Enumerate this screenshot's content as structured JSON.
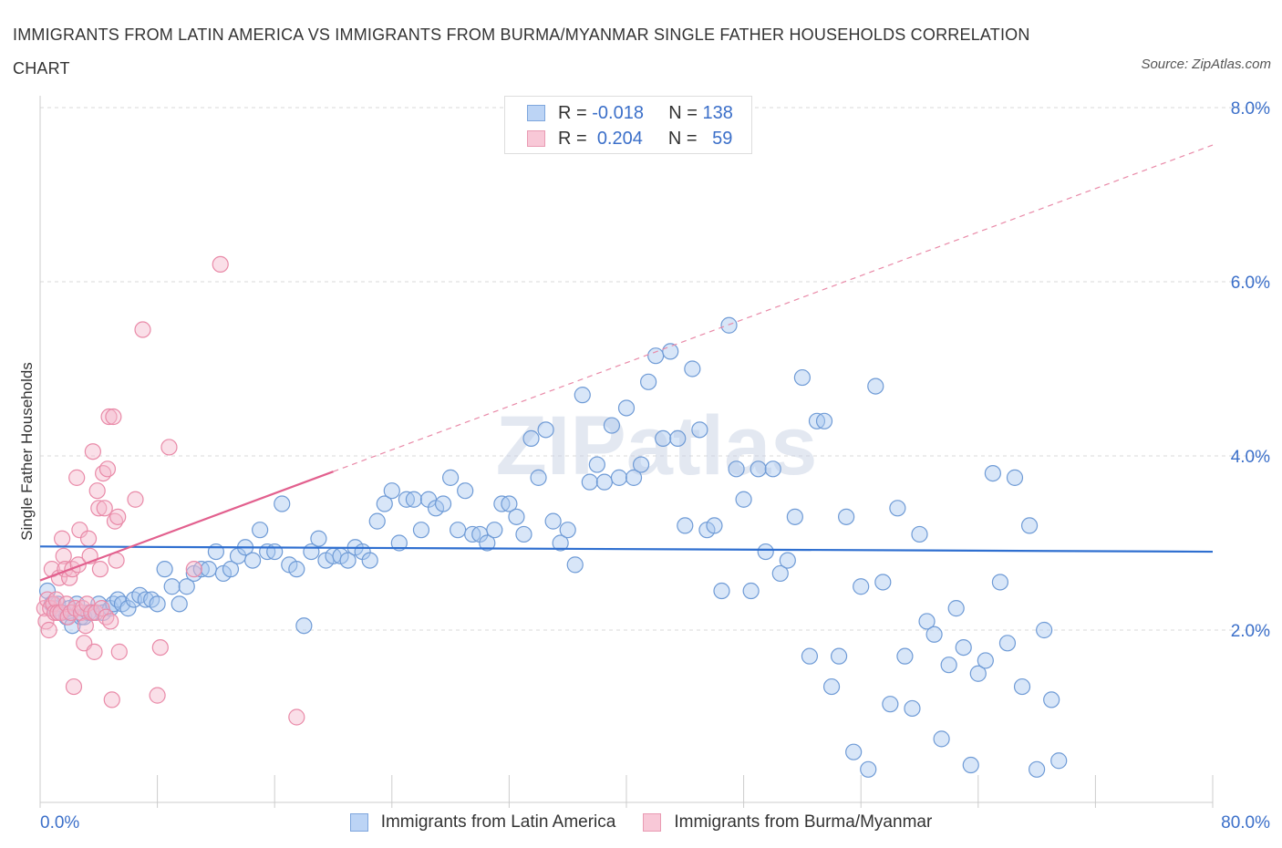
{
  "title": "IMMIGRANTS FROM LATIN AMERICA VS IMMIGRANTS FROM BURMA/MYANMAR SINGLE FATHER HOUSEHOLDS CORRELATION CHART",
  "source": "Source: ZipAtlas.com",
  "watermark": "ZIPatlas",
  "colors": {
    "blue_fill": "#a9c7f0",
    "blue_stroke": "#6f9bd6",
    "blue_line": "#2f6fd0",
    "pink_fill": "#f5b8cb",
    "pink_stroke": "#e98aa8",
    "pink_line": "#e2608e",
    "axis_text": "#3b6fc9",
    "grid": "#d9d9d9"
  },
  "legend": {
    "rows": [
      {
        "r_label": "R =",
        "r_value": "-0.018",
        "n_label": "N =",
        "n_value": "138"
      },
      {
        "r_label": "R =",
        "r_value": "0.204",
        "n_label": "N =",
        "n_value": "59"
      }
    ]
  },
  "bottom_legend": {
    "series1": "Immigrants from Latin America",
    "series2": "Immigrants from Burma/Myanmar"
  },
  "chart_data": {
    "type": "scatter",
    "ylabel": "Single Father Households",
    "xlim": [
      0,
      80
    ],
    "ylim": [
      0,
      8
    ],
    "x_tick_labels": [
      "0.0%",
      "80.0%"
    ],
    "y_ticks": [
      2,
      4,
      6,
      8
    ],
    "y_tick_labels": [
      "2.0%",
      "4.0%",
      "6.0%",
      "8.0%"
    ],
    "grid": "horizontal dashed",
    "series": [
      {
        "name": "Immigrants from Latin America",
        "color": "#a9c7f0",
        "trend": {
          "x": [
            0,
            80
          ],
          "y": [
            2.96,
            2.9
          ],
          "style": "solid"
        },
        "points": [
          [
            0.5,
            2.45
          ],
          [
            0.8,
            2.3
          ],
          [
            1.0,
            2.25
          ],
          [
            1.2,
            2.3
          ],
          [
            1.5,
            2.2
          ],
          [
            1.8,
            2.15
          ],
          [
            2.0,
            2.25
          ],
          [
            2.2,
            2.05
          ],
          [
            2.5,
            2.3
          ],
          [
            2.8,
            2.15
          ],
          [
            3.0,
            2.15
          ],
          [
            3.3,
            2.2
          ],
          [
            3.6,
            2.2
          ],
          [
            4.0,
            2.3
          ],
          [
            4.3,
            2.2
          ],
          [
            4.8,
            2.25
          ],
          [
            5.0,
            2.3
          ],
          [
            5.3,
            2.35
          ],
          [
            5.6,
            2.3
          ],
          [
            6.0,
            2.25
          ],
          [
            6.4,
            2.35
          ],
          [
            6.8,
            2.4
          ],
          [
            7.2,
            2.35
          ],
          [
            7.6,
            2.35
          ],
          [
            8.0,
            2.3
          ],
          [
            8.5,
            2.7
          ],
          [
            9.0,
            2.5
          ],
          [
            9.5,
            2.3
          ],
          [
            10.0,
            2.5
          ],
          [
            10.5,
            2.65
          ],
          [
            11.0,
            2.7
          ],
          [
            11.5,
            2.7
          ],
          [
            12.0,
            2.9
          ],
          [
            12.5,
            2.65
          ],
          [
            13.0,
            2.7
          ],
          [
            13.5,
            2.85
          ],
          [
            14.0,
            2.95
          ],
          [
            14.5,
            2.8
          ],
          [
            15.0,
            3.15
          ],
          [
            15.5,
            2.9
          ],
          [
            16.0,
            2.9
          ],
          [
            16.5,
            3.45
          ],
          [
            17.0,
            2.75
          ],
          [
            17.5,
            2.7
          ],
          [
            18.0,
            2.05
          ],
          [
            18.5,
            2.9
          ],
          [
            19.0,
            3.05
          ],
          [
            19.5,
            2.8
          ],
          [
            20.0,
            2.85
          ],
          [
            20.5,
            2.85
          ],
          [
            21.0,
            2.8
          ],
          [
            21.5,
            2.95
          ],
          [
            22.0,
            2.9
          ],
          [
            22.5,
            2.8
          ],
          [
            23.0,
            3.25
          ],
          [
            23.5,
            3.45
          ],
          [
            24.0,
            3.6
          ],
          [
            24.5,
            3.0
          ],
          [
            25.0,
            3.5
          ],
          [
            25.5,
            3.5
          ],
          [
            26.0,
            3.15
          ],
          [
            26.5,
            3.5
          ],
          [
            27.0,
            3.4
          ],
          [
            27.5,
            3.45
          ],
          [
            28.0,
            3.75
          ],
          [
            28.5,
            3.15
          ],
          [
            29.0,
            3.6
          ],
          [
            29.5,
            3.1
          ],
          [
            30.0,
            3.1
          ],
          [
            30.5,
            3.0
          ],
          [
            31.0,
            3.15
          ],
          [
            31.5,
            3.45
          ],
          [
            32.0,
            3.45
          ],
          [
            32.5,
            3.3
          ],
          [
            33.0,
            3.1
          ],
          [
            33.5,
            4.2
          ],
          [
            34.0,
            3.75
          ],
          [
            34.5,
            4.3
          ],
          [
            35.0,
            3.25
          ],
          [
            35.5,
            3.0
          ],
          [
            36.0,
            3.15
          ],
          [
            36.5,
            2.75
          ],
          [
            37.0,
            4.7
          ],
          [
            37.5,
            3.7
          ],
          [
            38.0,
            3.9
          ],
          [
            38.5,
            3.7
          ],
          [
            39.0,
            4.35
          ],
          [
            39.5,
            3.75
          ],
          [
            40.0,
            4.55
          ],
          [
            40.5,
            3.75
          ],
          [
            41.0,
            3.9
          ],
          [
            41.5,
            4.85
          ],
          [
            42.0,
            5.15
          ],
          [
            42.5,
            4.2
          ],
          [
            43.0,
            5.2
          ],
          [
            43.5,
            4.2
          ],
          [
            44.0,
            3.2
          ],
          [
            44.5,
            5.0
          ],
          [
            45.0,
            4.3
          ],
          [
            45.5,
            3.15
          ],
          [
            46.0,
            3.2
          ],
          [
            46.5,
            2.45
          ],
          [
            47.0,
            5.5
          ],
          [
            47.5,
            3.85
          ],
          [
            48.0,
            3.5
          ],
          [
            48.5,
            2.45
          ],
          [
            49.0,
            3.85
          ],
          [
            49.5,
            2.9
          ],
          [
            50.0,
            3.85
          ],
          [
            50.5,
            2.65
          ],
          [
            51.0,
            2.8
          ],
          [
            51.5,
            3.3
          ],
          [
            52.0,
            4.9
          ],
          [
            52.5,
            1.7
          ],
          [
            53.0,
            4.4
          ],
          [
            53.5,
            4.4
          ],
          [
            54.0,
            1.35
          ],
          [
            54.5,
            1.7
          ],
          [
            55.0,
            3.3
          ],
          [
            55.5,
            0.6
          ],
          [
            56.0,
            2.5
          ],
          [
            56.5,
            0.4
          ],
          [
            57.0,
            4.8
          ],
          [
            57.5,
            2.55
          ],
          [
            58.0,
            1.15
          ],
          [
            58.5,
            3.4
          ],
          [
            59.0,
            1.7
          ],
          [
            59.5,
            1.1
          ],
          [
            60.0,
            3.1
          ],
          [
            60.5,
            2.1
          ],
          [
            61.0,
            1.95
          ],
          [
            61.5,
            0.75
          ],
          [
            62.0,
            1.6
          ],
          [
            62.5,
            2.25
          ],
          [
            63.0,
            1.8
          ],
          [
            63.5,
            0.45
          ],
          [
            64.0,
            1.5
          ],
          [
            64.5,
            1.65
          ],
          [
            65.0,
            3.8
          ],
          [
            65.5,
            2.55
          ],
          [
            66.0,
            1.85
          ],
          [
            66.5,
            3.75
          ],
          [
            67.0,
            1.35
          ],
          [
            67.5,
            3.2
          ],
          [
            68.0,
            0.4
          ],
          [
            68.5,
            2.0
          ],
          [
            69.0,
            1.2
          ],
          [
            69.5,
            0.5
          ]
        ]
      },
      {
        "name": "Immigrants from Burma/Myanmar",
        "color": "#f5b8cb",
        "trend": {
          "x": [
            0,
            20
          ],
          "y": [
            2.57,
            3.82
          ],
          "style": "solid",
          "extension_x": [
            20,
            80
          ],
          "extension_y": [
            3.82,
            7.57
          ],
          "extension_style": "dashed"
        },
        "points": [
          [
            0.3,
            2.25
          ],
          [
            0.4,
            2.1
          ],
          [
            0.5,
            2.35
          ],
          [
            0.6,
            2.0
          ],
          [
            0.7,
            2.25
          ],
          [
            0.8,
            2.7
          ],
          [
            0.9,
            2.3
          ],
          [
            1.0,
            2.2
          ],
          [
            1.1,
            2.35
          ],
          [
            1.2,
            2.2
          ],
          [
            1.3,
            2.6
          ],
          [
            1.4,
            2.2
          ],
          [
            1.5,
            3.05
          ],
          [
            1.6,
            2.85
          ],
          [
            1.7,
            2.7
          ],
          [
            1.8,
            2.3
          ],
          [
            1.9,
            2.15
          ],
          [
            2.0,
            2.6
          ],
          [
            2.1,
            2.2
          ],
          [
            2.2,
            2.7
          ],
          [
            2.3,
            1.35
          ],
          [
            2.4,
            2.25
          ],
          [
            2.5,
            3.75
          ],
          [
            2.6,
            2.75
          ],
          [
            2.7,
            3.15
          ],
          [
            2.8,
            2.2
          ],
          [
            2.9,
            2.25
          ],
          [
            3.0,
            1.85
          ],
          [
            3.1,
            2.05
          ],
          [
            3.2,
            2.3
          ],
          [
            3.3,
            3.05
          ],
          [
            3.4,
            2.85
          ],
          [
            3.5,
            2.2
          ],
          [
            3.6,
            4.05
          ],
          [
            3.7,
            1.75
          ],
          [
            3.8,
            2.2
          ],
          [
            3.9,
            3.6
          ],
          [
            4.0,
            3.4
          ],
          [
            4.1,
            2.7
          ],
          [
            4.2,
            2.25
          ],
          [
            4.3,
            3.8
          ],
          [
            4.4,
            3.4
          ],
          [
            4.5,
            2.15
          ],
          [
            4.6,
            3.85
          ],
          [
            4.7,
            4.45
          ],
          [
            4.8,
            2.1
          ],
          [
            4.9,
            1.2
          ],
          [
            5.0,
            4.45
          ],
          [
            5.1,
            3.25
          ],
          [
            5.2,
            2.8
          ],
          [
            5.3,
            3.3
          ],
          [
            5.4,
            1.75
          ],
          [
            6.5,
            3.5
          ],
          [
            7.0,
            5.45
          ],
          [
            8.0,
            1.25
          ],
          [
            8.2,
            1.8
          ],
          [
            8.8,
            4.1
          ],
          [
            10.5,
            2.7
          ],
          [
            12.3,
            6.2
          ],
          [
            17.5,
            1.0
          ]
        ]
      }
    ]
  }
}
